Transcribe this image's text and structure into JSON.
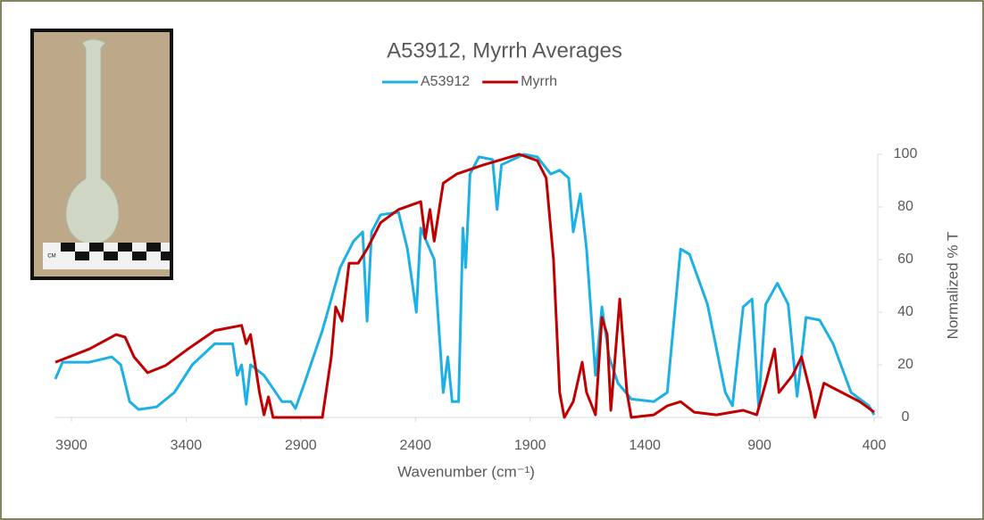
{
  "image": {
    "scale_label": "CM"
  },
  "chart_data": {
    "type": "line",
    "title": "A53912, Myrrh Averages",
    "x_label": "Wavenumber (cm⁻¹)",
    "y_label": "Normalized % T",
    "xlim": [
      3970,
      400
    ],
    "xticks": [
      3900,
      3400,
      2900,
      2400,
      1900,
      1400,
      900,
      400
    ],
    "ylim": [
      0,
      100
    ],
    "yticks": [
      0,
      20,
      40,
      60,
      80,
      100
    ],
    "y_axis_side": "right",
    "legend": "top",
    "series": [
      {
        "name": "A53912",
        "color": "#1cb0e4",
        "x": [
          3970,
          3939,
          3822,
          3724,
          3685,
          3646,
          3607,
          3529,
          3451,
          3373,
          3275,
          3197,
          3177,
          3158,
          3138,
          3119,
          3060,
          2982,
          2943,
          2923,
          2884,
          2806,
          2728,
          2670,
          2630,
          2611,
          2591,
          2552,
          2474,
          2435,
          2396,
          2377,
          2318,
          2279,
          2259,
          2240,
          2212,
          2193,
          2181,
          2162,
          2123,
          2064,
          2044,
          2025,
          1927,
          1869,
          1810,
          1771,
          1732,
          1712,
          1681,
          1654,
          1615,
          1587,
          1556,
          1517,
          1459,
          1361,
          1302,
          1244,
          1205,
          1127,
          1049,
          1018,
          971,
          932,
          904,
          873,
          822,
          775,
          736,
          697,
          638,
          579,
          501,
          423,
          400
        ],
        "values": [
          14.6,
          21,
          21,
          23,
          20,
          6,
          3,
          4,
          9.5,
          20,
          28,
          28,
          16,
          20,
          5,
          20,
          16,
          6,
          6,
          3.4,
          13,
          33,
          57,
          67,
          70.5,
          36.6,
          70.5,
          77,
          78,
          64,
          40,
          72,
          60,
          9.5,
          23,
          6,
          6,
          72,
          57,
          92.5,
          99,
          98,
          79,
          96,
          100,
          99,
          92.5,
          94,
          91,
          70.5,
          85,
          64,
          16,
          42,
          23,
          13,
          7,
          6,
          9.5,
          64,
          62,
          43,
          9.5,
          4.4,
          42,
          45,
          4.4,
          43,
          51,
          43,
          8,
          38,
          37,
          28,
          9.5,
          4.4,
          1
        ]
      },
      {
        "name": "Myrrh",
        "color": "#c00000",
        "x": [
          3970,
          3822,
          3705,
          3666,
          3627,
          3568,
          3490,
          3392,
          3275,
          3158,
          3138,
          3119,
          3080,
          3060,
          3041,
          3021,
          2806,
          2767,
          2748,
          2720,
          2689,
          2650,
          2611,
          2552,
          2474,
          2377,
          2357,
          2337,
          2318,
          2279,
          2220,
          2103,
          2025,
          1947,
          1869,
          1830,
          1798,
          1771,
          1751,
          1712,
          1673,
          1654,
          1615,
          1587,
          1564,
          1548,
          1509,
          1478,
          1459,
          1361,
          1302,
          1244,
          1185,
          1088,
          971,
          912,
          873,
          834,
          815,
          756,
          717,
          678,
          658,
          619,
          541,
          463,
          400
        ],
        "values": [
          21,
          26,
          31.5,
          30.5,
          23,
          17,
          19.7,
          26,
          33,
          35,
          28,
          31.5,
          9.5,
          1,
          7.8,
          0,
          0,
          23,
          42,
          36.6,
          58.6,
          58.6,
          64,
          74,
          79,
          82,
          68,
          79,
          67,
          89,
          92.5,
          96,
          98,
          100,
          97.6,
          91,
          60,
          9.5,
          0,
          6,
          21,
          9.5,
          1,
          38,
          31.5,
          2.7,
          45,
          9.5,
          0,
          1,
          4.4,
          6,
          2,
          1,
          2.7,
          1,
          13,
          26,
          9.5,
          16,
          23,
          9.5,
          0,
          13,
          9.5,
          6,
          2
        ]
      }
    ]
  }
}
